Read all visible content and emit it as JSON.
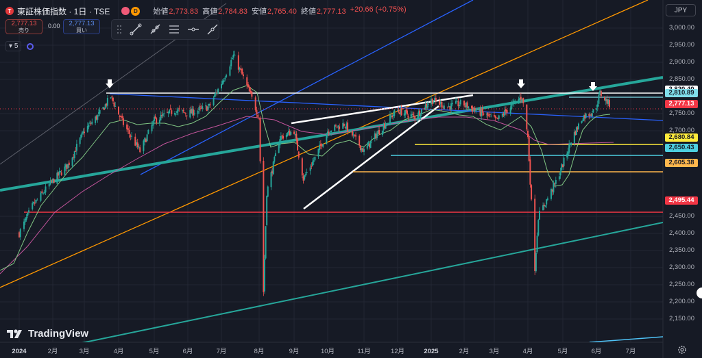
{
  "header": {
    "symbol_title": "東証株価指数 · 1日 · TSE",
    "logo_letter": "T",
    "badge_letter": "D",
    "ohlc": [
      {
        "label": "始値",
        "value": "2,773.83"
      },
      {
        "label": "高値",
        "value": "2,784.83"
      },
      {
        "label": "安値",
        "value": "2,765.40"
      },
      {
        "label": "終値",
        "value": "2,777.13"
      }
    ],
    "change": "+20.66 (+0.75%)"
  },
  "trade": {
    "sell_price": "2,777.13",
    "sell_label": "売り",
    "spread": "0.00",
    "buy_price": "2,777.13",
    "buy_label": "買い"
  },
  "indicators": {
    "count": "5"
  },
  "currency": "JPY",
  "watermark": "TradingView",
  "colors": {
    "background": "#161a25",
    "price_line": "#f23645",
    "teal_trend": "#26a69a",
    "blue_trend": "#2962ff",
    "orange_trend": "#ff9800",
    "white_line": "#ffffff",
    "candle_up": "#26a69a",
    "candle_down": "#ef5350"
  },
  "chart_data": {
    "type": "candlestick",
    "symbol": "東証株価指数",
    "interval": "1日",
    "exchange": "TSE",
    "y_axis_labels": [
      "3,000.00",
      "2,950.00",
      "2,900.00",
      "2,850.00",
      "2,750.00",
      "2,700.00",
      "2,450.00",
      "2,400.00",
      "2,350.00",
      "2,300.00",
      "2,250.00",
      "2,200.00",
      "2,150.00"
    ],
    "x_axis_labels": [
      "2024",
      "2月",
      "3月",
      "4月",
      "5月",
      "6月",
      "7月",
      "8月",
      "9月",
      "10月",
      "11月",
      "12月",
      "2025",
      "2月",
      "3月",
      "4月",
      "5月",
      "6月",
      "7月"
    ],
    "ylim": [
      2140,
      3030
    ],
    "price_tags": [
      {
        "value": 2820.4,
        "text": "2,820.40",
        "style": "white"
      },
      {
        "value": 2810.89,
        "text": "2,810.89",
        "style": "blue"
      },
      {
        "value": 2777.13,
        "text": "2,777.13",
        "style": "price"
      },
      {
        "value": 2680.84,
        "text": "2,680.84",
        "style": "yellow"
      },
      {
        "value": 2650.43,
        "text": "2,650.43",
        "style": "cyan"
      },
      {
        "value": 2605.38,
        "text": "2,605.38",
        "style": "orange"
      },
      {
        "value": 2495.44,
        "text": "2,495.44",
        "style": "red"
      }
    ],
    "close_path": [
      [
        "2024-01-04",
        2400
      ],
      [
        "2024-01-15",
        2480
      ],
      [
        "2024-01-31",
        2550
      ],
      [
        "2024-02-15",
        2600
      ],
      [
        "2024-03-01",
        2700
      ],
      [
        "2024-03-15",
        2750
      ],
      [
        "2024-03-25",
        2800
      ],
      [
        "2024-04-05",
        2720
      ],
      [
        "2024-04-19",
        2640
      ],
      [
        "2024-05-01",
        2730
      ],
      [
        "2024-05-20",
        2760
      ],
      [
        "2024-06-01",
        2750
      ],
      [
        "2024-06-20",
        2770
      ],
      [
        "2024-07-01",
        2840
      ],
      [
        "2024-07-11",
        2920
      ],
      [
        "2024-07-22",
        2830
      ],
      [
        "2024-08-01",
        2740
      ],
      [
        "2024-08-05",
        2230
      ],
      [
        "2024-08-08",
        2520
      ],
      [
        "2024-08-20",
        2680
      ],
      [
        "2024-09-02",
        2700
      ],
      [
        "2024-09-10",
        2560
      ],
      [
        "2024-09-20",
        2620
      ],
      [
        "2024-10-01",
        2700
      ],
      [
        "2024-10-15",
        2720
      ],
      [
        "2024-11-01",
        2640
      ],
      [
        "2024-11-15",
        2700
      ],
      [
        "2024-12-01",
        2760
      ],
      [
        "2024-12-20",
        2740
      ],
      [
        "2025-01-06",
        2790
      ],
      [
        "2025-01-20",
        2770
      ],
      [
        "2025-02-01",
        2780
      ],
      [
        "2025-02-20",
        2750
      ],
      [
        "2025-03-05",
        2730
      ],
      [
        "2025-03-20",
        2780
      ],
      [
        "2025-03-27",
        2800
      ],
      [
        "2025-04-01",
        2680
      ],
      [
        "2025-04-07",
        2300
      ],
      [
        "2025-04-10",
        2450
      ],
      [
        "2025-04-25",
        2550
      ],
      [
        "2025-05-10",
        2680
      ],
      [
        "2025-05-20",
        2740
      ],
      [
        "2025-06-01",
        2760
      ],
      [
        "2025-06-05",
        2810
      ],
      [
        "2025-06-13",
        2777
      ]
    ]
  }
}
